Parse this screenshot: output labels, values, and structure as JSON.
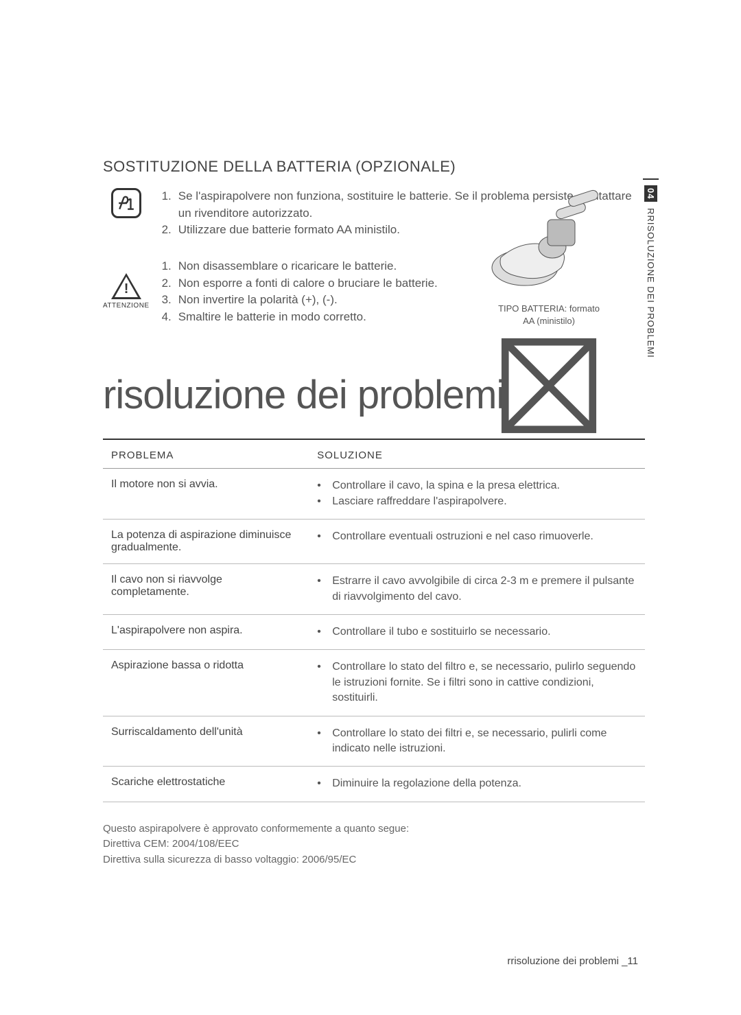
{
  "section_heading": "SOSTITUZIONE DELLA BATTERIA (OPZIONALE)",
  "info_bullets": [
    "Se l'aspirapolvere non funziona, sostituire le batterie. Se il problema persiste, contattare un rivenditore autorizzato.",
    "Utilizzare due batterie formato AA ministilo."
  ],
  "warn_label": "ATTENZIONE",
  "warn_bullets": [
    "Non disassemblare o ricaricare le batterie.",
    "Non esporre a fonti di calore o bruciare le batterie.",
    "Non invertire la polarità (+), (-).",
    "Smaltire le batterie in modo corretto."
  ],
  "illus_caption_l1": "TIPO BATTERIA: formato",
  "illus_caption_l2": "AA (ministilo)",
  "side_tab_num": "04",
  "side_tab_text": "RRISOLUZIONE DEI PROBLEMI",
  "big_title": "risoluzione dei problemi",
  "table": {
    "col_problem": "PROBLEMA",
    "col_solution": "SOLUZIONE",
    "rows": [
      {
        "problem": "Il motore non si avvia.",
        "solutions": [
          "Controllare il cavo, la spina e la presa elettrica.",
          "Lasciare raffreddare l'aspirapolvere."
        ]
      },
      {
        "problem": "La potenza di aspirazione diminuisce gradualmente.",
        "solutions": [
          "Controllare eventuali ostruzioni e nel caso rimuoverle."
        ]
      },
      {
        "problem": "Il cavo non si riavvolge completamente.",
        "solutions": [
          "Estrarre il cavo avvolgibile di circa 2-3 m e premere il pulsante di riavvolgimento del cavo."
        ]
      },
      {
        "problem": "L'aspirapolvere non aspira.",
        "solutions": [
          "Controllare il tubo e sostituirlo se necessario."
        ]
      },
      {
        "problem": "Aspirazione bassa o ridotta",
        "solutions": [
          "Controllare lo stato del filtro e, se necessario, pulirlo seguendo le istruzioni fornite. Se i filtri sono in cattive condizioni, sostituirli."
        ]
      },
      {
        "problem": "Surriscaldamento dell'unità",
        "solutions": [
          "Controllare lo stato dei filtri e, se necessario, pulirli come indicato nelle istruzioni."
        ]
      },
      {
        "problem": "Scariche elettrostatiche",
        "solutions": [
          "Diminuire la regolazione della potenza."
        ]
      }
    ]
  },
  "footnotes": [
    "Questo aspirapolvere è approvato conformemente a quanto segue:",
    "Direttiva CEM: 2004/108/EEC",
    "Direttiva sulla sicurezza di basso voltaggio: 2006/95/EC"
  ],
  "page_foot": "rrisoluzione dei problemi _11",
  "colors": {
    "text": "#555555",
    "head": "#3a3a3a",
    "rule_dark": "#333333",
    "rule_light": "#bbbbbb"
  }
}
